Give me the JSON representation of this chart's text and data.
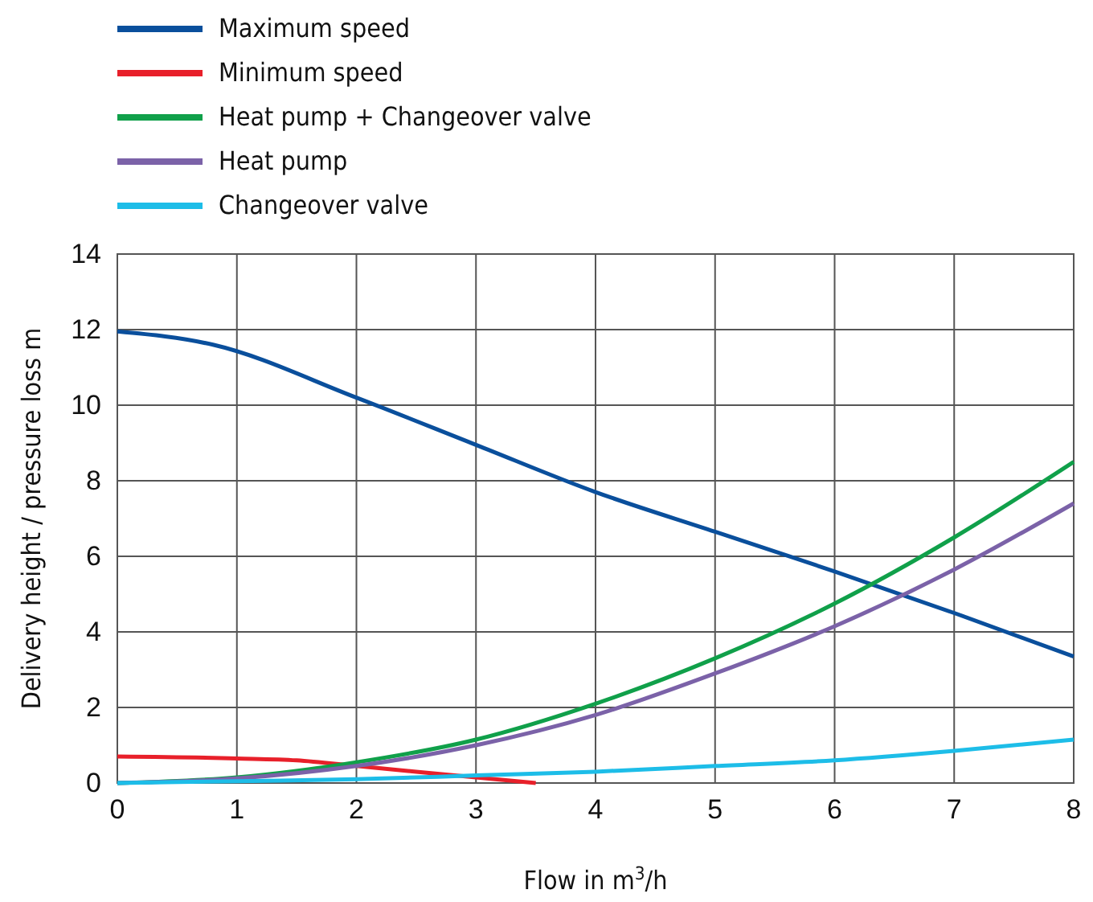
{
  "chart_data": {
    "type": "line",
    "xlabel": "Flow in m$^{3}$/h",
    "ylabel": "Delivery height / pressure loss m",
    "xlim": [
      0,
      8
    ],
    "xticks": [
      0,
      1,
      2,
      3,
      4,
      5,
      6,
      7,
      8
    ],
    "ylim": [
      0,
      14
    ],
    "yticks": [
      0,
      2,
      4,
      6,
      8,
      10,
      12,
      14
    ],
    "grid": true,
    "legend": "top left",
    "marker": "none",
    "line_style": "solid",
    "series": [
      {
        "name": "Maximum speed",
        "color": "#0a4f9c",
        "x": [
          0,
          0.8,
          2,
          3,
          4,
          5,
          6,
          7,
          8
        ],
        "values": [
          11.95,
          11.6,
          10.2,
          8.95,
          7.7,
          6.65,
          5.6,
          4.5,
          3.35
        ]
      },
      {
        "name": "Minimum speed",
        "color": "#e8202a",
        "x": [
          0,
          1,
          1.5,
          2,
          2.5,
          3,
          3.5
        ],
        "values": [
          0.7,
          0.65,
          0.6,
          0.45,
          0.3,
          0.15,
          0
        ]
      },
      {
        "name": "Heat pump + Changeover valve",
        "color": "#10a04a",
        "x": [
          0,
          1,
          2,
          3,
          4,
          5,
          6,
          7,
          8
        ],
        "values": [
          0,
          0.15,
          0.55,
          1.15,
          2.1,
          3.3,
          4.75,
          6.5,
          8.5
        ]
      },
      {
        "name": "Heat pump",
        "color": "#7b62a8",
        "x": [
          0,
          1,
          2,
          3,
          4,
          5,
          6,
          7,
          8
        ],
        "values": [
          0,
          0.12,
          0.45,
          1.0,
          1.8,
          2.9,
          4.15,
          5.65,
          7.4
        ]
      },
      {
        "name": "Changeover valve",
        "color": "#1dbde8",
        "x": [
          0,
          1,
          2,
          3,
          4,
          5,
          6,
          7,
          8
        ],
        "values": [
          0,
          0.05,
          0.1,
          0.2,
          0.3,
          0.45,
          0.6,
          0.85,
          1.15
        ]
      }
    ]
  }
}
